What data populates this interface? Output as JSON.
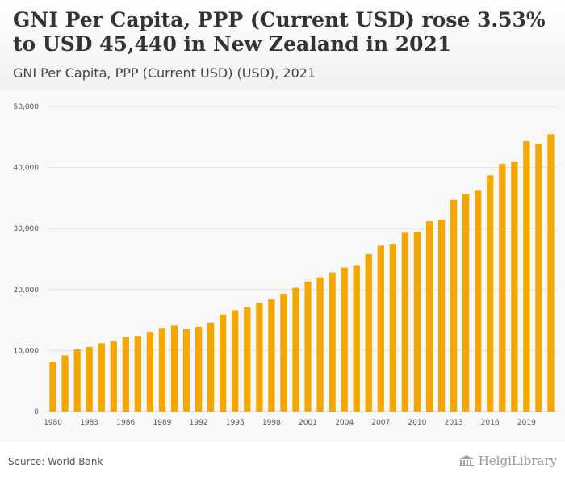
{
  "header": {
    "title": "GNI Per Capita, PPP (Current USD) rose 3.53% to USD 45,440 in New Zealand in 2021",
    "subtitle": "GNI Per Capita, PPP (Current USD) (USD), 2021"
  },
  "footer": {
    "source": "Source: World Bank",
    "brand": "HelgiLibrary"
  },
  "colors": {
    "bar": "#f5a700",
    "grid": "#e2e2e2",
    "axis": "#cccccc"
  },
  "icons": {
    "brand_logo": "library-building-icon"
  },
  "chart_data": {
    "type": "bar",
    "x": [
      1980,
      1981,
      1982,
      1983,
      1984,
      1985,
      1986,
      1987,
      1988,
      1989,
      1990,
      1991,
      1992,
      1993,
      1994,
      1995,
      1996,
      1997,
      1998,
      1999,
      2000,
      2001,
      2002,
      2003,
      2004,
      2005,
      2006,
      2007,
      2008,
      2009,
      2010,
      2011,
      2012,
      2013,
      2014,
      2015,
      2016,
      2017,
      2018,
      2019,
      2020,
      2021
    ],
    "values": [
      8200,
      9200,
      10200,
      10600,
      11200,
      11500,
      12200,
      12400,
      13100,
      13600,
      14100,
      13500,
      13900,
      14600,
      15900,
      16600,
      17100,
      17800,
      18400,
      19300,
      20300,
      21300,
      22000,
      22800,
      23600,
      24000,
      25800,
      27200,
      27500,
      29300,
      29500,
      31200,
      31500,
      34700,
      35700,
      36200,
      38700,
      40600,
      40900,
      44300,
      43900,
      45440
    ],
    "xticks": [
      "1980",
      "1983",
      "1986",
      "1989",
      "1992",
      "1995",
      "1998",
      "2001",
      "2004",
      "2007",
      "2010",
      "2013",
      "2016",
      "2019"
    ],
    "yticks": [
      0,
      10000,
      20000,
      30000,
      40000,
      50000
    ],
    "ytick_labels": [
      "0",
      "10,000",
      "20,000",
      "30,000",
      "40,000",
      "50,000"
    ],
    "ylim": [
      0,
      50000
    ],
    "grid": true
  }
}
